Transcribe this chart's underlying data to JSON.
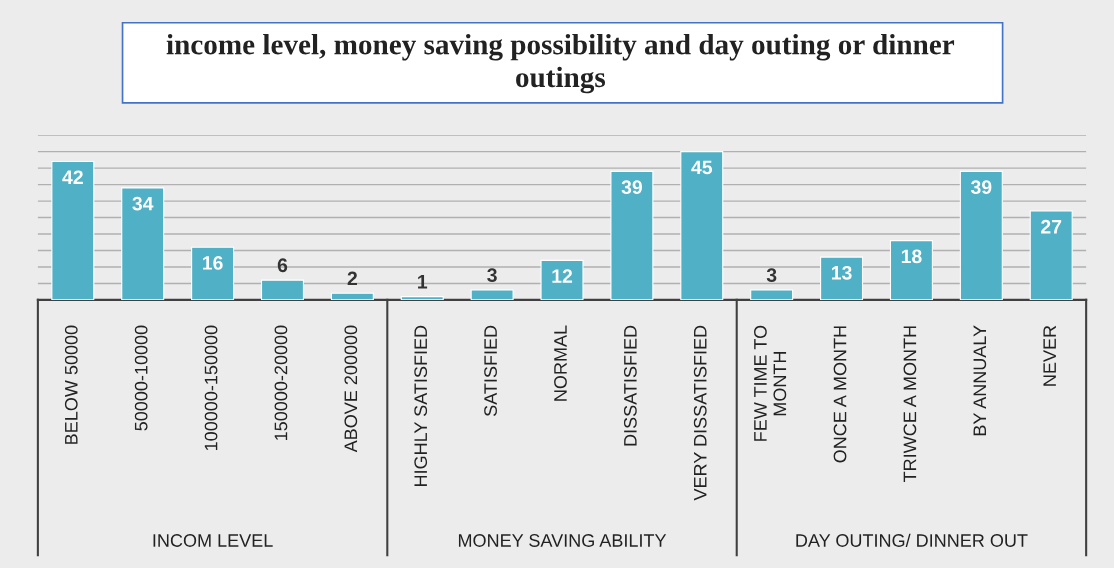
{
  "chart_data": {
    "type": "bar",
    "title": "income level, money saving possibility and day outing or dinner outings",
    "categories": [
      "BELOW 50000",
      "50000-10000",
      "100000-150000",
      "150000-20000",
      "ABOVE 200000",
      "HIGHLY SATISFIED",
      "SATISFIED",
      "NORMAL",
      "DISSATISFIED",
      "VERY DISSATISFIED",
      "FEW TIME TO\nMONTH",
      "ONCE A MONTH",
      "TRIWCE A MONTH",
      "BY ANNUALY",
      "NEVER"
    ],
    "values": [
      42,
      34,
      16,
      6,
      2,
      1,
      3,
      12,
      39,
      45,
      3,
      13,
      18,
      39,
      27
    ],
    "color": "#4fb0c6",
    "ylim": [
      0,
      50
    ],
    "yticks": [
      {
        "value": 0,
        "label": null
      },
      {
        "value": 5,
        "label": null
      },
      {
        "value": 10,
        "label": null
      },
      {
        "value": 15,
        "label": null
      },
      {
        "value": 20,
        "label": null
      },
      {
        "value": 25,
        "label": null
      },
      {
        "value": 30,
        "label": null
      },
      {
        "value": 35,
        "label": null
      },
      {
        "value": 40,
        "label": null
      },
      {
        "value": 45,
        "label": null
      },
      {
        "value": 50,
        "label": null
      }
    ],
    "grid": "y",
    "data_labels": true,
    "tick_labels": "x",
    "annotations": [
      "INCOM LEVEL",
      "MONEY SAVING ABILITY",
      "DAY OUTING/ DINNER OUT"
    ]
  }
}
